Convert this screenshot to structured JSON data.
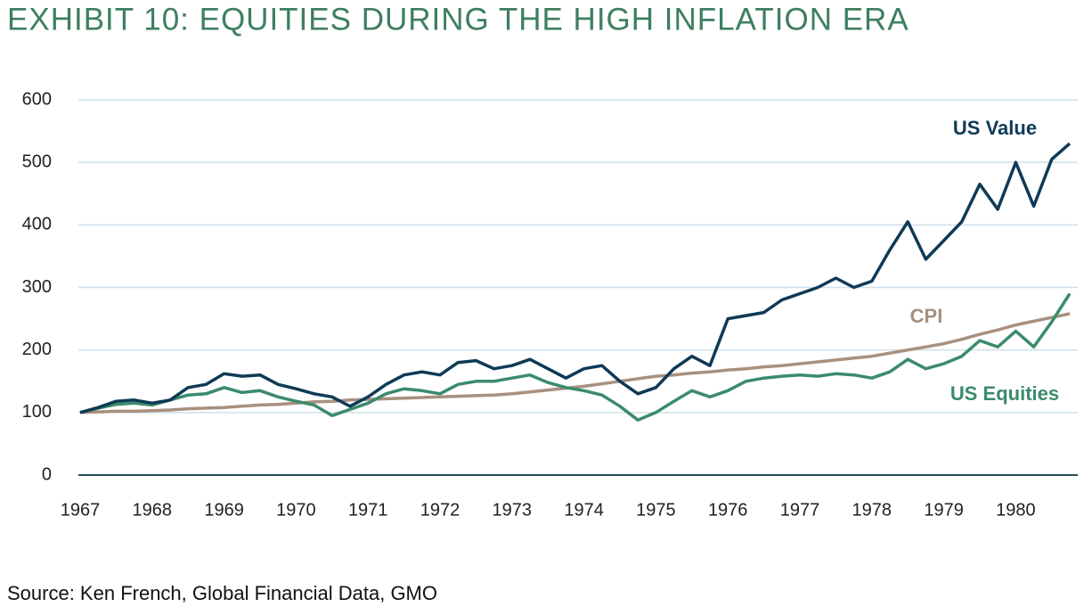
{
  "chart_data": {
    "type": "line",
    "title": "EXHIBIT 10: EQUITIES DURING THE HIGH INFLATION ERA",
    "source": "Source: Ken French, Global Financial Data, GMO",
    "categories": [
      "1967",
      null,
      null,
      null,
      "1968",
      null,
      null,
      null,
      "1969",
      null,
      null,
      null,
      "1970",
      null,
      null,
      null,
      "1971",
      null,
      null,
      null,
      "1972",
      null,
      null,
      null,
      "1973",
      null,
      null,
      null,
      "1974",
      null,
      null,
      null,
      "1975",
      null,
      null,
      null,
      "1976",
      null,
      null,
      null,
      "1977",
      null,
      null,
      null,
      "1978",
      null,
      null,
      null,
      "1979",
      null,
      null,
      null,
      "1980",
      null,
      null,
      null
    ],
    "series": [
      {
        "name": "US Value",
        "color": "#0e3a56",
        "values": [
          100,
          108,
          118,
          120,
          115,
          120,
          140,
          145,
          162,
          158,
          160,
          145,
          138,
          130,
          125,
          110,
          125,
          145,
          160,
          165,
          160,
          180,
          183,
          170,
          175,
          185,
          170,
          155,
          170,
          175,
          150,
          130,
          140,
          170,
          190,
          175,
          250,
          255,
          260,
          280,
          290,
          300,
          315,
          300,
          310,
          360,
          405,
          345,
          375,
          405,
          465,
          425,
          500,
          430,
          505,
          530
        ]
      },
      {
        "name": "CPI",
        "color": "#a8907f",
        "values": [
          100,
          101,
          102,
          102,
          103,
          104,
          106,
          107,
          108,
          110,
          112,
          113,
          115,
          117,
          118,
          120,
          121,
          122,
          123,
          124,
          125,
          126,
          127,
          128,
          130,
          133,
          136,
          139,
          142,
          146,
          150,
          154,
          158,
          160,
          163,
          165,
          168,
          170,
          173,
          175,
          178,
          181,
          184,
          187,
          190,
          195,
          200,
          205,
          210,
          217,
          225,
          232,
          240,
          246,
          252,
          258
        ]
      },
      {
        "name": "US Equities",
        "color": "#3b8b6b",
        "values": [
          100,
          107,
          113,
          115,
          112,
          120,
          128,
          130,
          140,
          132,
          135,
          125,
          118,
          112,
          95,
          105,
          115,
          130,
          138,
          135,
          130,
          145,
          150,
          150,
          155,
          160,
          148,
          140,
          135,
          128,
          110,
          88,
          100,
          118,
          135,
          125,
          135,
          150,
          155,
          158,
          160,
          158,
          162,
          160,
          155,
          165,
          185,
          170,
          178,
          190,
          215,
          205,
          230,
          205,
          245,
          290
        ]
      }
    ],
    "ylim": [
      0,
      600
    ],
    "yticks": [
      0,
      100,
      200,
      300,
      400,
      500,
      600
    ],
    "grid": true
  }
}
